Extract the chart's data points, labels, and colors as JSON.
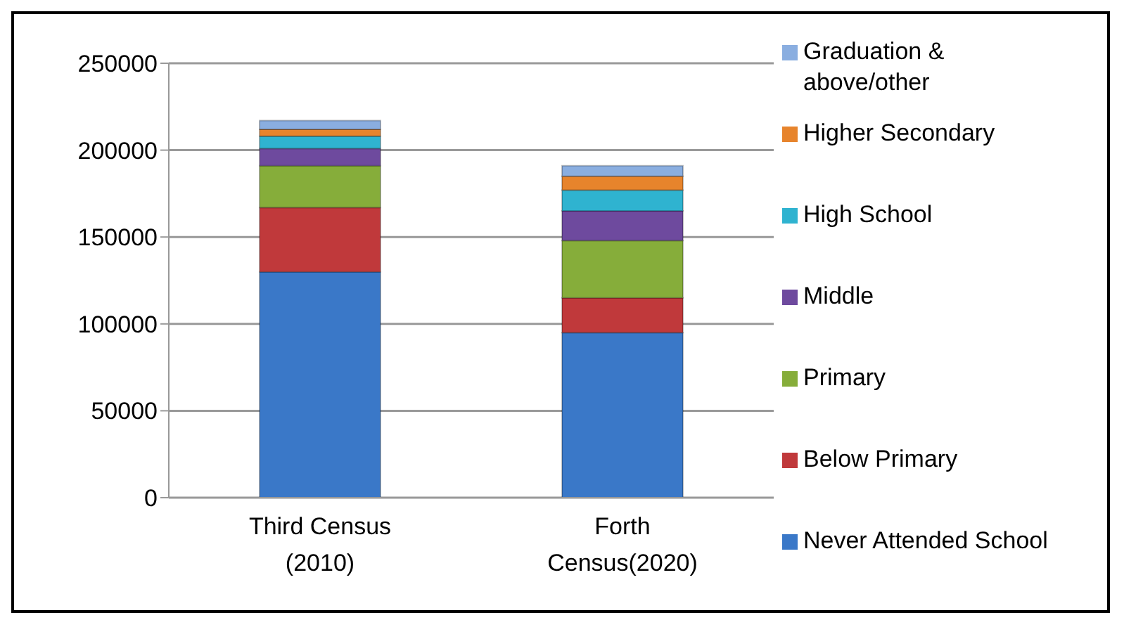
{
  "chart_data": {
    "type": "bar",
    "stacked": true,
    "categories": [
      "Third Census (2010)",
      "Forth Census(2020)"
    ],
    "series": [
      {
        "name": "Never Attended School",
        "color": "#3a78c8",
        "values": [
          130000,
          95000
        ]
      },
      {
        "name": "Below Primary",
        "color": "#c0393b",
        "values": [
          37000,
          20000
        ]
      },
      {
        "name": "Primary",
        "color": "#86ad3a",
        "values": [
          24000,
          33000
        ]
      },
      {
        "name": "Middle",
        "color": "#6e4a9e",
        "values": [
          10000,
          17000
        ]
      },
      {
        "name": "High School",
        "color": "#2fb3d0",
        "values": [
          7000,
          12000
        ]
      },
      {
        "name": "Higher Secondary",
        "color": "#e7842c",
        "values": [
          4000,
          8000
        ]
      },
      {
        "name": "Graduation & above/other",
        "color": "#8aaee0",
        "values": [
          5000,
          6000
        ]
      }
    ],
    "ylim": [
      0,
      250000
    ],
    "yticks": [
      0,
      50000,
      100000,
      150000,
      200000,
      250000
    ],
    "grid": "y",
    "legend": "right"
  }
}
